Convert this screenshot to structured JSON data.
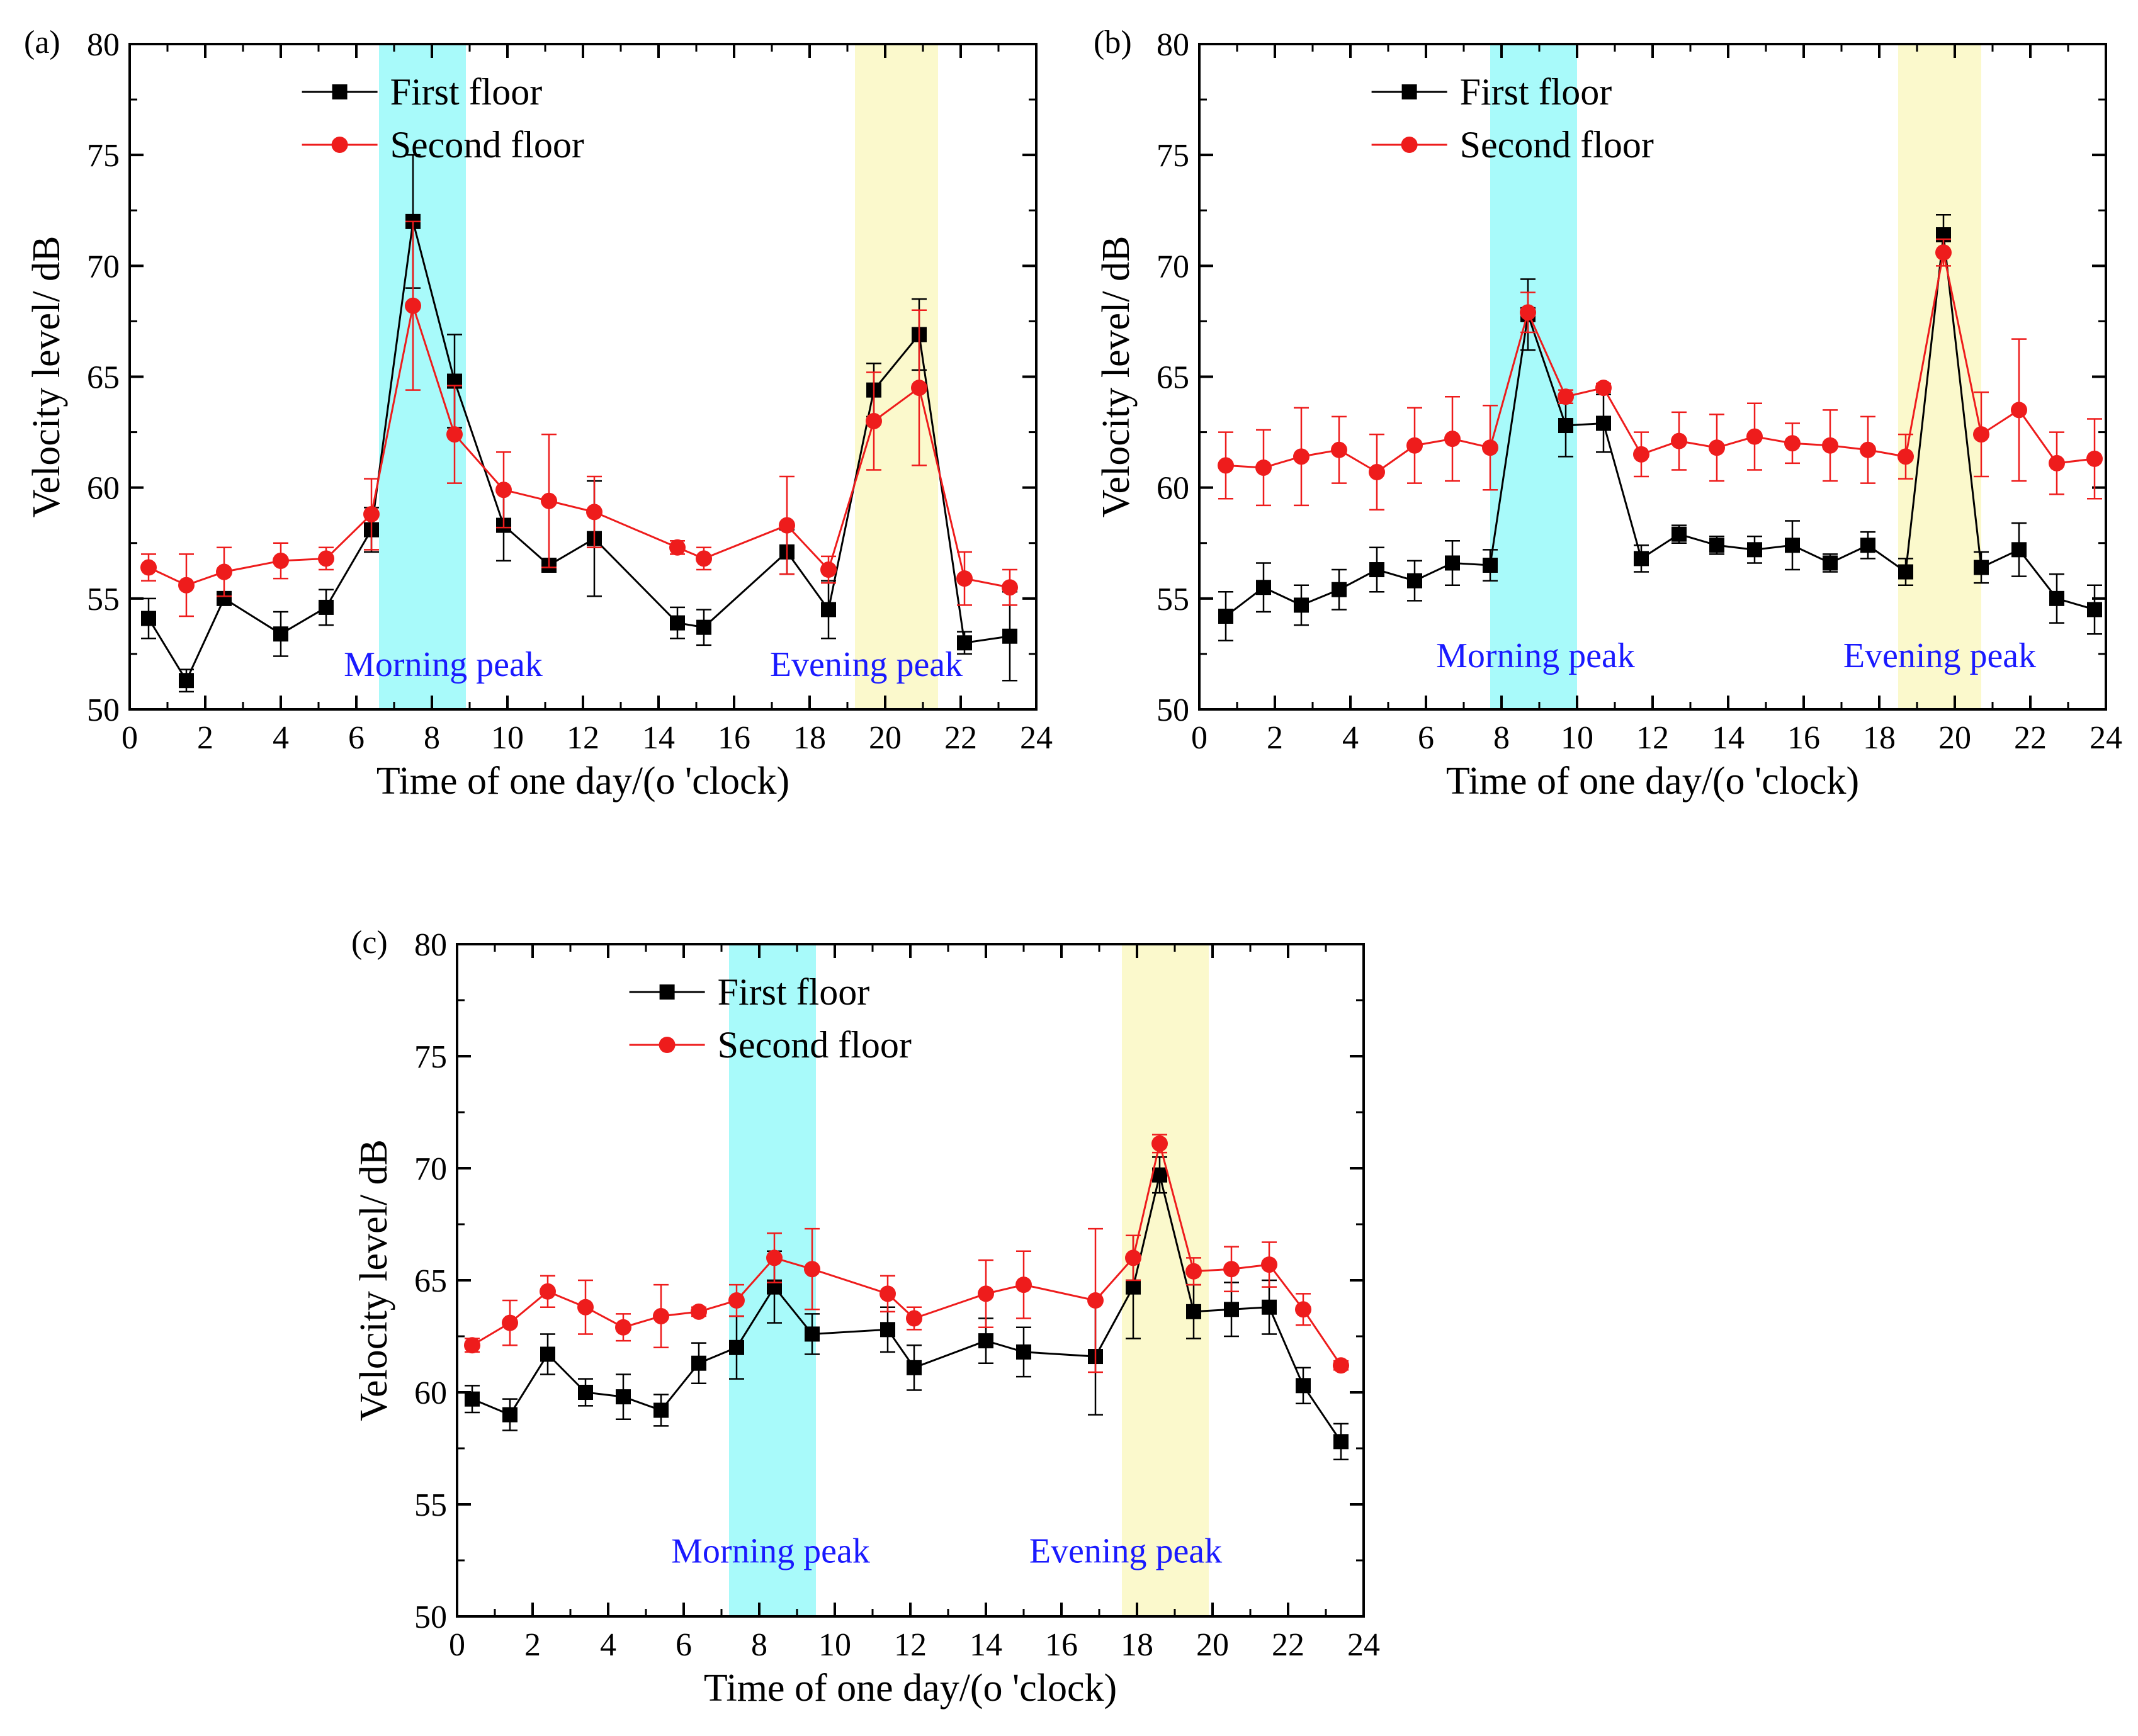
{
  "colors": {
    "first_floor": "#000000",
    "second_floor": "#ee1c1c",
    "morning_band": "#a8fafa",
    "evening_band": "#fbf9cc",
    "band_label": "#1a1aff"
  },
  "chart_data": [
    {
      "type": "line",
      "panel_label": "(a)",
      "xlabel": "Time of one day/(o 'clock)",
      "ylabel": "Velocity level/ dB",
      "xlim": [
        0,
        24
      ],
      "ylim": [
        50,
        80
      ],
      "xticks": [
        "0",
        "2",
        "4",
        "6",
        "8",
        "10",
        "12",
        "14",
        "16",
        "18",
        "20",
        "22",
        "24"
      ],
      "yticks": [
        "50",
        "55",
        "60",
        "65",
        "70",
        "75",
        "80"
      ],
      "legend_position": "top-center",
      "morning_band": [
        6.6,
        8.9
      ],
      "evening_band": [
        19.2,
        21.4
      ],
      "morning_label": "Morning peak",
      "evening_label": "Evening peak",
      "morning_label_x": 8.3,
      "evening_label_x": 19.5,
      "band_label_y": 51.5,
      "series": [
        {
          "name": "First floor",
          "marker": "square",
          "x": [
            0.5,
            1.5,
            2.5,
            4.0,
            5.2,
            6.4,
            7.5,
            8.6,
            9.9,
            11.1,
            12.3,
            14.5,
            15.2,
            17.4,
            18.5,
            19.7,
            20.9,
            22.1,
            23.3
          ],
          "y": [
            54.1,
            51.3,
            55.0,
            53.4,
            54.6,
            58.1,
            72.0,
            64.8,
            58.3,
            56.5,
            57.7,
            53.9,
            53.7,
            57.1,
            54.5,
            64.4,
            66.9,
            53.0,
            53.3
          ],
          "err": [
            0.9,
            0.5,
            0.3,
            1.0,
            0.8,
            1.0,
            3.0,
            2.1,
            1.6,
            0.3,
            2.6,
            0.7,
            0.8,
            1.0,
            1.3,
            1.2,
            1.6,
            0.5,
            2.0
          ]
        },
        {
          "name": "Second floor",
          "marker": "circle",
          "x": [
            0.5,
            1.5,
            2.5,
            4.0,
            5.2,
            6.4,
            7.5,
            8.6,
            9.9,
            11.1,
            12.3,
            14.5,
            15.2,
            17.4,
            18.5,
            19.7,
            20.9,
            22.1,
            23.3
          ],
          "y": [
            56.4,
            55.6,
            56.2,
            56.7,
            56.8,
            58.8,
            68.2,
            62.4,
            59.9,
            59.4,
            58.9,
            57.3,
            56.8,
            58.3,
            56.3,
            63.0,
            64.5,
            55.9,
            55.5
          ],
          "err": [
            0.6,
            1.4,
            1.1,
            0.8,
            0.5,
            1.6,
            3.8,
            2.2,
            1.7,
            3.0,
            1.6,
            0.3,
            0.5,
            2.2,
            0.6,
            2.2,
            3.5,
            1.2,
            0.8
          ]
        }
      ]
    },
    {
      "type": "line",
      "panel_label": "(b)",
      "xlabel": "Time of one day/(o 'clock)",
      "ylabel": "Velocity level/ dB",
      "xlim": [
        0,
        24
      ],
      "ylim": [
        50,
        80
      ],
      "xticks": [
        "0",
        "2",
        "4",
        "6",
        "8",
        "10",
        "12",
        "14",
        "16",
        "18",
        "20",
        "22",
        "24"
      ],
      "yticks": [
        "50",
        "55",
        "60",
        "65",
        "70",
        "75",
        "80"
      ],
      "legend_position": "top-center",
      "morning_band": [
        7.7,
        10.0
      ],
      "evening_band": [
        18.5,
        20.7
      ],
      "morning_label": "Morning peak",
      "evening_label": "Evening peak",
      "morning_label_x": 8.9,
      "evening_label_x": 19.6,
      "band_label_y": 51.9,
      "series": [
        {
          "name": "First floor",
          "marker": "square",
          "x": [
            0.7,
            1.7,
            2.7,
            3.7,
            4.7,
            5.7,
            6.7,
            7.7,
            8.7,
            9.7,
            10.7,
            11.7,
            12.7,
            13.7,
            14.7,
            15.7,
            16.7,
            17.7,
            18.7,
            19.7,
            20.7,
            21.7,
            22.7,
            23.7
          ],
          "y": [
            54.2,
            55.5,
            54.7,
            55.4,
            56.3,
            55.8,
            56.6,
            56.5,
            67.8,
            62.8,
            62.9,
            56.8,
            57.9,
            57.4,
            57.2,
            57.4,
            56.6,
            57.4,
            56.2,
            71.4,
            56.4,
            57.2,
            55.0,
            54.5
          ],
          "err": [
            1.1,
            1.1,
            0.9,
            0.9,
            1.0,
            0.9,
            1.0,
            0.7,
            1.6,
            1.4,
            1.3,
            0.6,
            0.4,
            0.4,
            0.6,
            1.1,
            0.4,
            0.6,
            0.6,
            0.9,
            0.7,
            1.2,
            1.1,
            1.1
          ]
        },
        {
          "name": "Second floor",
          "marker": "circle",
          "x": [
            0.7,
            1.7,
            2.7,
            3.7,
            4.7,
            5.7,
            6.7,
            7.7,
            8.7,
            9.7,
            10.7,
            11.7,
            12.7,
            13.7,
            14.7,
            15.7,
            16.7,
            17.7,
            18.7,
            19.7,
            20.7,
            21.7,
            22.7,
            23.7
          ],
          "y": [
            61.0,
            60.9,
            61.4,
            61.7,
            60.7,
            61.9,
            62.2,
            61.8,
            67.9,
            64.1,
            64.5,
            61.5,
            62.1,
            61.8,
            62.3,
            62.0,
            61.9,
            61.7,
            61.4,
            70.6,
            62.4,
            63.5,
            61.1,
            61.3
          ],
          "err": [
            1.5,
            1.7,
            2.2,
            1.5,
            1.7,
            1.7,
            1.9,
            1.9,
            0.9,
            0.3,
            0.2,
            1.0,
            1.3,
            1.5,
            1.5,
            0.9,
            1.6,
            1.5,
            1.0,
            0.6,
            1.9,
            3.2,
            1.4,
            1.8
          ]
        }
      ]
    },
    {
      "type": "line",
      "panel_label": "(c)",
      "xlabel": "Time of one day/(o 'clock)",
      "ylabel": "Velocity level/ dB",
      "xlim": [
        0,
        24
      ],
      "ylim": [
        50,
        80
      ],
      "xticks": [
        "0",
        "2",
        "4",
        "6",
        "8",
        "10",
        "12",
        "14",
        "16",
        "18",
        "20",
        "22",
        "24"
      ],
      "yticks": [
        "50",
        "55",
        "60",
        "65",
        "70",
        "75",
        "80"
      ],
      "legend_position": "top-center",
      "morning_band": [
        7.2,
        9.5
      ],
      "evening_band": [
        17.6,
        19.9
      ],
      "morning_label": "Morning peak",
      "evening_label": "Evening peak",
      "morning_label_x": 8.3,
      "evening_label_x": 17.7,
      "band_label_y": 52.4,
      "series": [
        {
          "name": "First floor",
          "marker": "square",
          "x": [
            0.4,
            1.4,
            2.4,
            3.4,
            4.4,
            5.4,
            6.4,
            7.4,
            8.4,
            9.4,
            11.4,
            12.1,
            14.0,
            15.0,
            16.9,
            17.9,
            18.6,
            19.5,
            20.5,
            21.5,
            22.4,
            23.4
          ],
          "y": [
            59.7,
            59.0,
            61.7,
            60.0,
            59.8,
            59.2,
            61.3,
            62.0,
            64.7,
            62.6,
            62.8,
            61.1,
            62.3,
            61.8,
            61.6,
            64.7,
            69.7,
            63.6,
            63.7,
            63.8,
            60.3,
            57.8
          ],
          "err": [
            0.6,
            0.7,
            0.9,
            0.6,
            1.0,
            0.7,
            0.9,
            1.4,
            1.6,
            0.9,
            1.0,
            1.0,
            1.0,
            1.1,
            2.6,
            2.3,
            0.8,
            1.2,
            1.2,
            1.2,
            0.8,
            0.8
          ]
        },
        {
          "name": "Second floor",
          "marker": "circle",
          "x": [
            0.4,
            1.4,
            2.4,
            3.4,
            4.4,
            5.4,
            6.4,
            7.4,
            8.4,
            9.4,
            11.4,
            12.1,
            14.0,
            15.0,
            16.9,
            17.9,
            18.6,
            19.5,
            20.5,
            21.5,
            22.4,
            23.4
          ],
          "y": [
            62.1,
            63.1,
            64.5,
            63.8,
            62.9,
            63.4,
            63.6,
            64.1,
            66.0,
            65.5,
            64.4,
            63.3,
            64.4,
            64.8,
            64.1,
            66.0,
            71.1,
            65.4,
            65.5,
            65.7,
            63.7,
            61.2
          ],
          "err": [
            0.3,
            1.0,
            0.7,
            1.2,
            0.6,
            1.4,
            0.2,
            0.7,
            1.1,
            1.8,
            0.8,
            0.5,
            1.5,
            1.5,
            3.2,
            1.0,
            0.4,
            0.6,
            1.0,
            1.0,
            0.7,
            0.2
          ]
        }
      ]
    }
  ]
}
